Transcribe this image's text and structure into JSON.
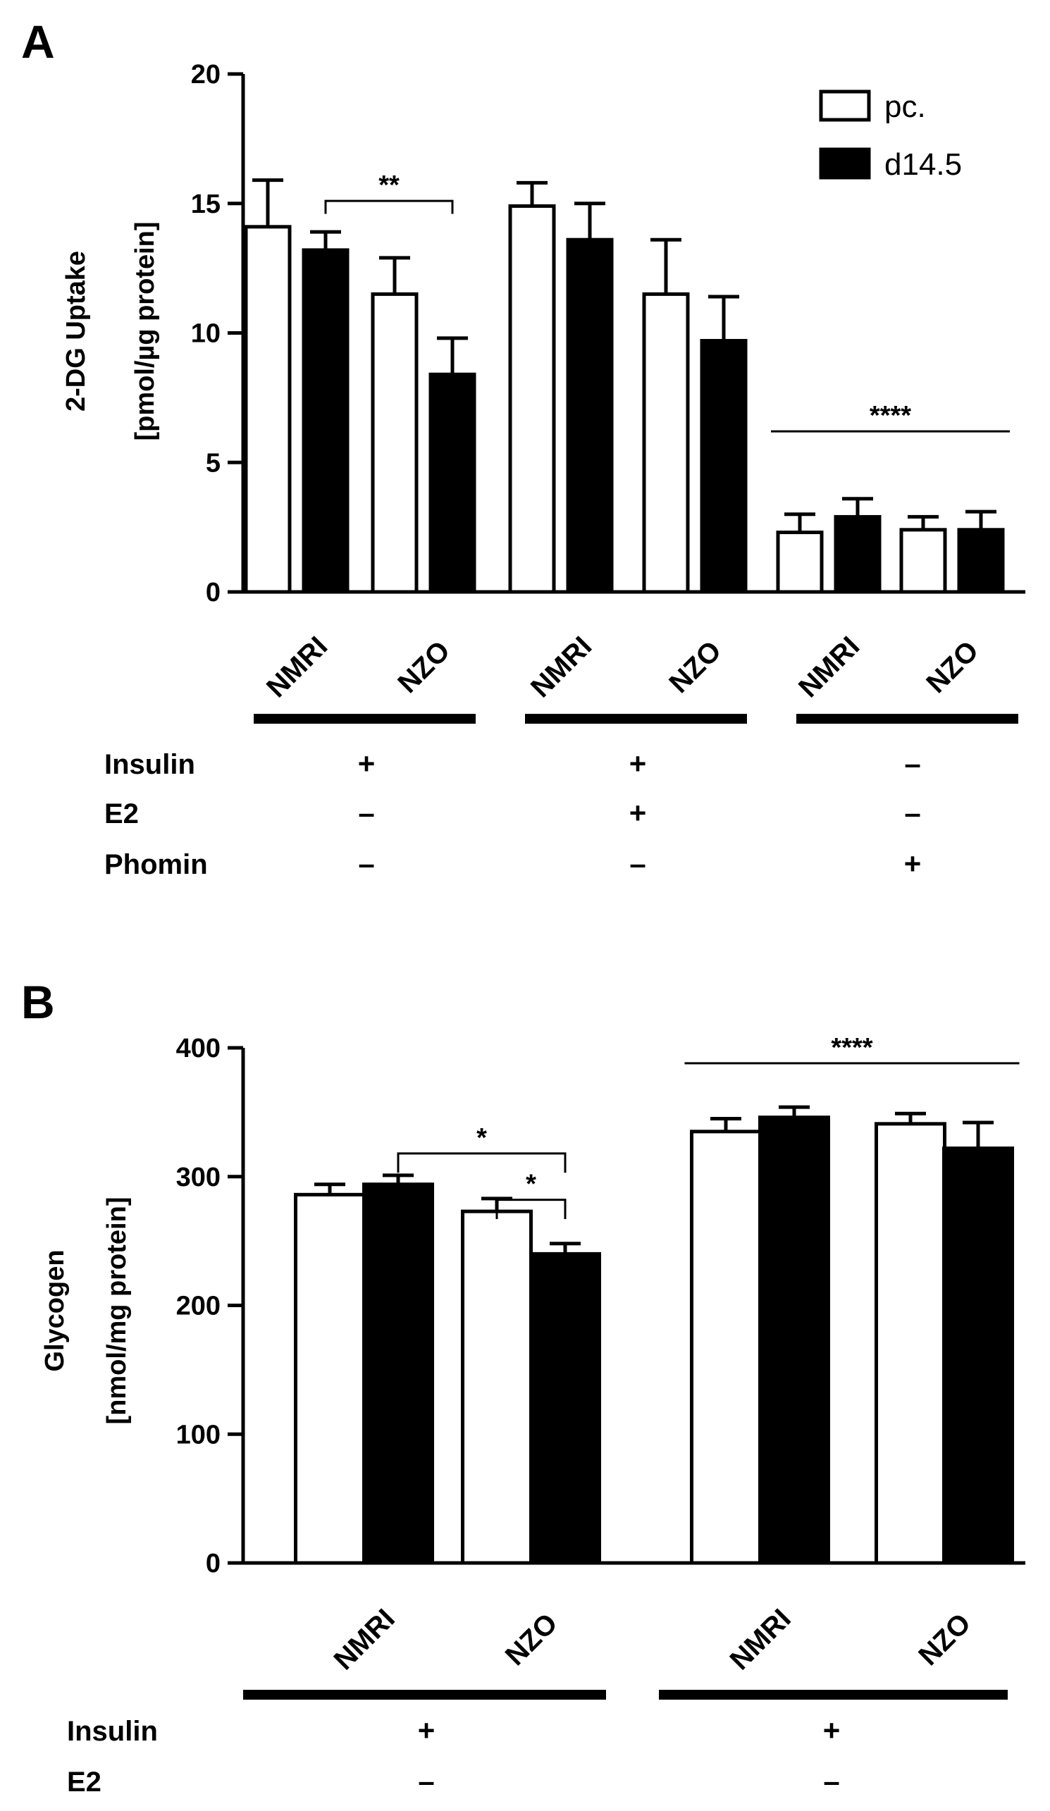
{
  "colors": {
    "white_bar": "#ffffff",
    "black_bar": "#000000",
    "stroke": "#000000"
  },
  "legend": [
    {
      "name": "pc.",
      "fill": "#ffffff"
    },
    {
      "name": "d14.5",
      "fill": "#000000"
    }
  ],
  "chart_data": [
    {
      "panel": "A",
      "type": "bar",
      "ylabel_lines": [
        "2-DG Uptake",
        "[pmol/µg protein]"
      ],
      "ylim": [
        0,
        20
      ],
      "yticks": [
        "0",
        "5",
        "10",
        "15",
        "20"
      ],
      "categories": [
        "NMRI",
        "NZO",
        "NMRI",
        "NZO",
        "NMRI",
        "NZO"
      ],
      "series": [
        {
          "name": "pc.",
          "values": [
            14.1,
            11.5,
            14.9,
            11.5,
            2.3,
            2.4
          ],
          "errors": [
            1.8,
            1.4,
            0.9,
            2.1,
            0.7,
            0.5
          ]
        },
        {
          "name": "d14.5",
          "values": [
            13.2,
            8.4,
            13.6,
            9.7,
            2.9,
            2.4
          ],
          "errors": [
            0.7,
            1.4,
            1.4,
            1.7,
            0.7,
            0.7
          ]
        }
      ],
      "significance": [
        {
          "label": "**",
          "type": "bracket",
          "y": 15.1,
          "from": [
            0,
            1
          ],
          "to": [
            1,
            1
          ],
          "drop": 0.5
        },
        {
          "label": "****",
          "type": "line",
          "y": 6.2,
          "from": [
            4,
            0
          ],
          "to": [
            5,
            1
          ]
        }
      ],
      "conditions": [
        {
          "name": "Insulin",
          "values": [
            "+",
            "+",
            "–"
          ]
        },
        {
          "name": "E2",
          "values": [
            "–",
            "+",
            "–"
          ]
        },
        {
          "name": "Phomin",
          "values": [
            "–",
            "–",
            "+"
          ]
        }
      ]
    },
    {
      "panel": "B",
      "type": "bar",
      "ylabel_lines": [
        "Glycogen",
        "[nmol/mg protein]"
      ],
      "ylim": [
        0,
        400
      ],
      "yticks": [
        "0",
        "100",
        "200",
        "300",
        "400"
      ],
      "categories": [
        "NMRI",
        "NZO",
        "NMRI",
        "NZO"
      ],
      "series": [
        {
          "name": "pc.",
          "values": [
            286,
            273,
            335,
            341
          ],
          "errors": [
            8,
            10,
            10,
            8
          ]
        },
        {
          "name": "d14.5",
          "values": [
            294,
            240,
            346,
            322
          ],
          "errors": [
            7,
            8,
            8,
            20
          ]
        }
      ],
      "significance": [
        {
          "label": "*",
          "type": "bracket",
          "y": 318,
          "from": [
            0,
            1
          ],
          "to": [
            1,
            1
          ],
          "drop": 15
        },
        {
          "label": "*",
          "type": "bracket",
          "y": 282,
          "from": [
            1,
            0
          ],
          "to": [
            1,
            1
          ],
          "drop": 15
        },
        {
          "label": "****",
          "type": "line",
          "y": 388,
          "from": [
            2,
            0
          ],
          "to": [
            3,
            1
          ]
        }
      ],
      "conditions": [
        {
          "name": "Insulin",
          "values": [
            "+",
            "+"
          ]
        },
        {
          "name": "E2",
          "values": [
            "–",
            "–"
          ]
        }
      ]
    }
  ]
}
